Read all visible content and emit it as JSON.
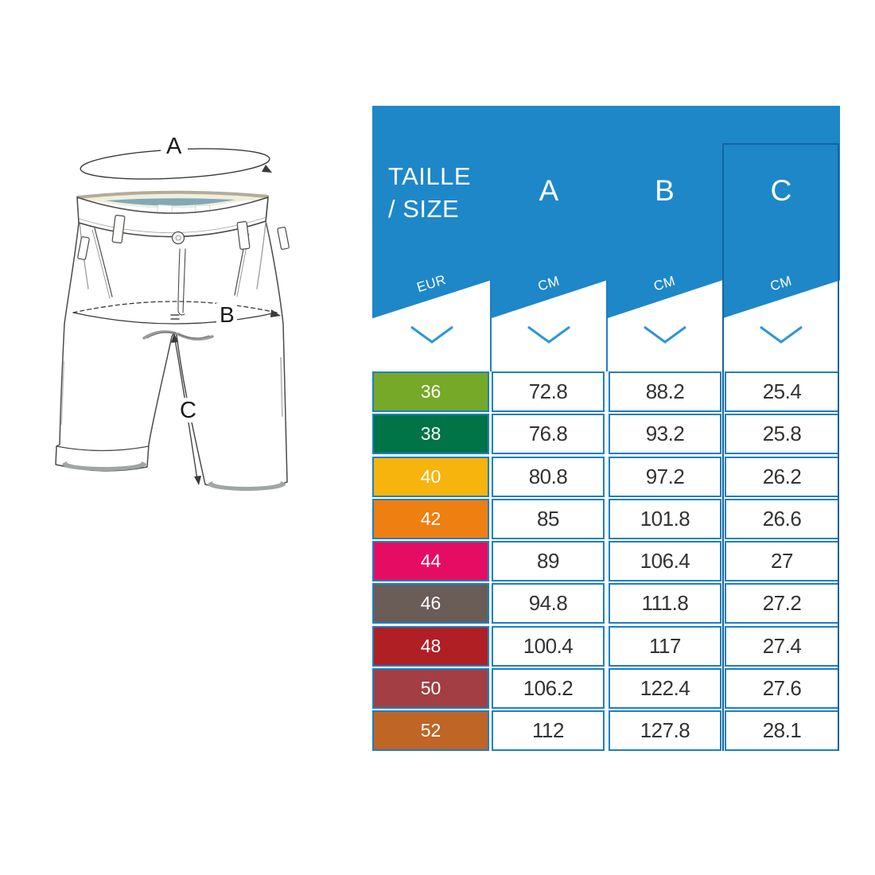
{
  "diagram": {
    "labels": {
      "waist": "A",
      "hip": "B",
      "inseam": "C"
    }
  },
  "table": {
    "header": {
      "title_line1": "TAILLE",
      "title_line2": "/ SIZE",
      "size_unit": "EUR",
      "columns": [
        {
          "label": "A",
          "unit": "CM"
        },
        {
          "label": "B",
          "unit": "CM"
        },
        {
          "label": "C",
          "unit": "CM"
        }
      ]
    },
    "colors": {
      "header_blue": "#1E87C8",
      "border_blue": "#1C7FC4",
      "panel_outline": "#1563A0",
      "chevron": "#2D96D6"
    },
    "rows": [
      {
        "size": "36",
        "color": "#76A928",
        "a": "72.8",
        "b": "88.2",
        "c": "25.4"
      },
      {
        "size": "38",
        "color": "#007347",
        "a": "76.8",
        "b": "93.2",
        "c": "25.8"
      },
      {
        "size": "40",
        "color": "#F6B40C",
        "a": "80.8",
        "b": "97.2",
        "c": "26.2"
      },
      {
        "size": "42",
        "color": "#EE7F10",
        "a": "85",
        "b": "101.8",
        "c": "26.6"
      },
      {
        "size": "44",
        "color": "#E50C64",
        "a": "89",
        "b": "106.4",
        "c": "27"
      },
      {
        "size": "46",
        "color": "#6A5C57",
        "a": "94.8",
        "b": "111.8",
        "c": "27.2"
      },
      {
        "size": "48",
        "color": "#B01F24",
        "a": "100.4",
        "b": "117",
        "c": "27.4"
      },
      {
        "size": "50",
        "color": "#A23E44",
        "a": "106.2",
        "b": "122.4",
        "c": "27.6"
      },
      {
        "size": "52",
        "color": "#BF6526",
        "a": "112",
        "b": "127.8",
        "c": "28.1"
      }
    ]
  },
  "chart_data": {
    "type": "table",
    "title": "TAILLE / SIZE",
    "columns": [
      "TAILLE / SIZE (EUR)",
      "A (CM)",
      "B (CM)",
      "C (CM)"
    ],
    "rows": [
      [
        36,
        72.8,
        88.2,
        25.4
      ],
      [
        38,
        76.8,
        93.2,
        25.8
      ],
      [
        40,
        80.8,
        97.2,
        26.2
      ],
      [
        42,
        85,
        101.8,
        26.6
      ],
      [
        44,
        89,
        106.4,
        27
      ],
      [
        46,
        94.8,
        111.8,
        27.2
      ],
      [
        48,
        100.4,
        117,
        27.4
      ],
      [
        50,
        106.2,
        122.4,
        27.6
      ],
      [
        52,
        112,
        127.8,
        28.1
      ]
    ]
  }
}
